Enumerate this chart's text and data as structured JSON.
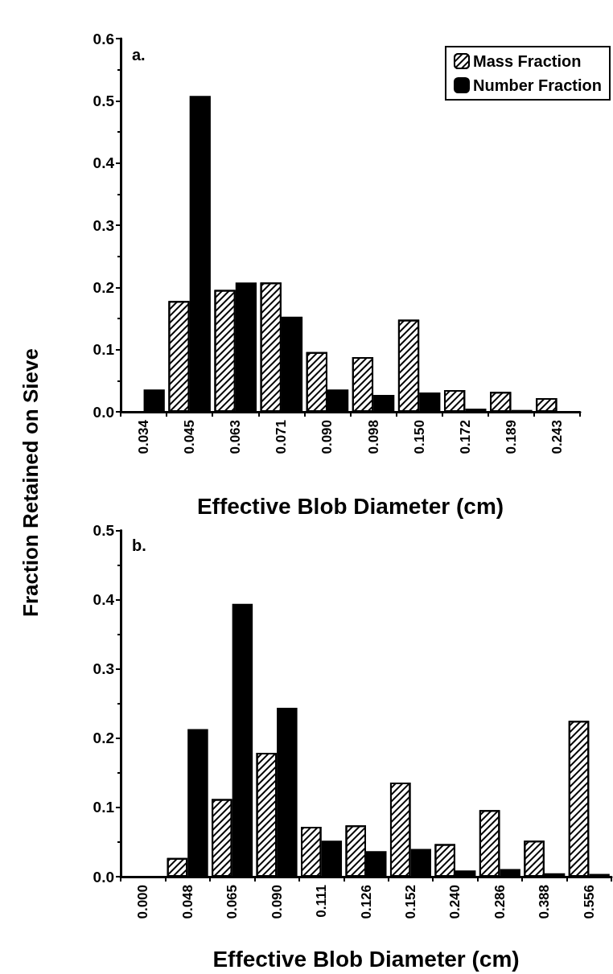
{
  "chart_data": [
    {
      "type": "bar",
      "ylabel": "Fraction Retained on Sieve",
      "xlabel": "Effective Blob Diameter (cm)",
      "annotations": [
        "a."
      ],
      "categories": [
        "0.034",
        "0.045",
        "0.063",
        "0.071",
        "0.090",
        "0.098",
        "0.150",
        "0.172",
        "0.189",
        "0.243"
      ],
      "series": [
        {
          "name": "Mass Fraction",
          "color": "#ffffff",
          "values": [
            null,
            0.178,
            0.196,
            0.208,
            0.096,
            0.088,
            0.148,
            0.035,
            0.032,
            0.022
          ]
        },
        {
          "name": "Number Fraction",
          "color": "#000000",
          "values": [
            0.036,
            0.508,
            0.208,
            0.153,
            0.036,
            0.027,
            0.031,
            0.005,
            0.003,
            null
          ]
        }
      ],
      "ylim": [
        0,
        0.6
      ],
      "yticks": [
        {
          "value": 0,
          "label": "0.0"
        },
        0.1,
        0.2,
        0.3,
        0.4,
        0.5,
        0.6
      ],
      "grid": false,
      "legend": "top right"
    },
    {
      "type": "bar",
      "xlabel": "Effective Blob Diameter (cm)",
      "annotations": [
        "b."
      ],
      "categories": [
        "0.000",
        "0.048",
        "0.065",
        "0.090",
        "0.111",
        "0.126",
        "0.152",
        "0.240",
        "0.286",
        "0.388",
        "0.556"
      ],
      "series": [
        {
          "color": "#ffffff",
          "values": [
            null,
            0.027,
            0.112,
            0.179,
            0.072,
            0.074,
            0.136,
            0.047,
            0.096,
            0.052,
            0.225
          ]
        },
        {
          "color": "#000000",
          "values": [
            null,
            0.213,
            0.394,
            0.244,
            0.052,
            0.037,
            0.04,
            0.009,
            0.011,
            0.005,
            0.004
          ]
        }
      ],
      "ylim": [
        0,
        0.5
      ],
      "yticks": [
        {
          "value": 0,
          "label": "0.0"
        },
        0.1,
        0.2,
        0.3,
        0.4,
        0.5
      ],
      "grid": false,
      "legend": false
    }
  ]
}
